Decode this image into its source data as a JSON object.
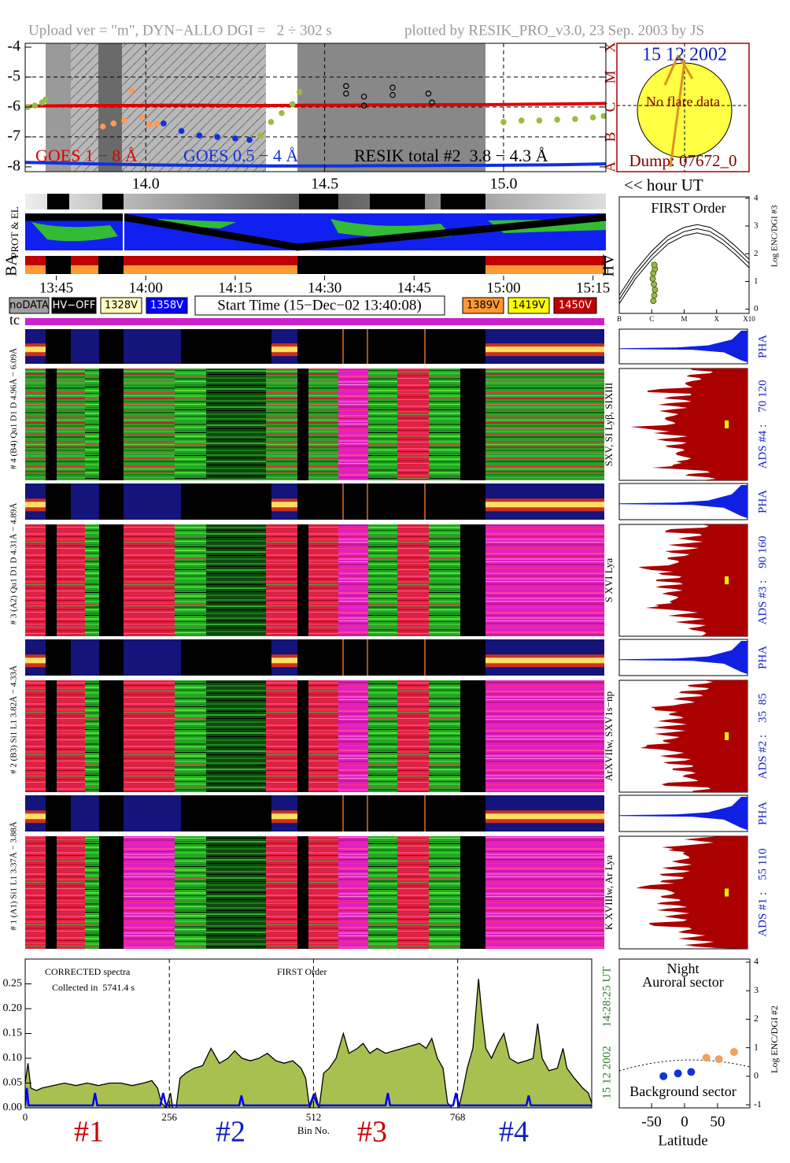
{
  "header": {
    "left": "Upload ver = \"m\", DYN−ALLO DGI =   2 ÷ 302 s",
    "right": "plotted by RESIK_PRO_v3.0, 23 Sep. 2003 by JS"
  },
  "sun": {
    "date": "15 12 2002",
    "note": "No flare data",
    "dump": "Dump: 07672_0"
  },
  "hour_label": "<< hour UT",
  "strip_labels": {
    "prot": "PROT & EL",
    "ba": "BA",
    "hv": "HV",
    "tc": "tc"
  },
  "legend_boxes": [
    {
      "label": "noDATA",
      "color": "#a0a0a0"
    },
    {
      "label": "HV−OFF",
      "color": "#000000"
    },
    {
      "label": "1328V",
      "color": "#ffffc0"
    },
    {
      "label": "1358V",
      "color": "#0000ff"
    },
    {
      "label": "1389V",
      "color": "#ff9933"
    },
    {
      "label": "1419V",
      "color": "#ffff00"
    },
    {
      "label": "1450V",
      "color": "#c00000"
    }
  ],
  "start_time": "Start Time (15−Dec−02 13:40:08)",
  "spectrograms": [
    {
      "left": "# 4 (B4) Qu1 D1 D 4.96Å − 6.09Å",
      "lines": "SXV, SI Lyβ, SIXIII",
      "ads": "ADS #4 :    70 120",
      "pha": "PHA"
    },
    {
      "left": "# 3 (A2) Qu1 D1 D 4.31Å − 4.89Å",
      "lines": "S XVI Lya",
      "ads": "ADS #3 :    90 160",
      "pha": "PHA"
    },
    {
      "left": "# 2 (B3) Si1 L1 3.82Å − 4.33Å",
      "lines": "ArXVIIw, SXV1s−np",
      "ads": "ADS #2 :    35  85",
      "pha": "PHA"
    },
    {
      "left": "# 1 (A1) Si1 L1 3.37Å − 3.88Å",
      "lines": "K XVIIIw, Ar Lya",
      "ads": "ADS #1 :    55 110",
      "pha": "PHA"
    }
  ],
  "chart_data": [
    {
      "type": "line",
      "xlim": [
        13.663,
        15.286
      ],
      "xticks": [
        {
          "value": 14,
          "label": "14.0"
        },
        14.5,
        {
          "value": 15,
          "label": "15.0"
        }
      ],
      "ylim": [
        -8.16,
        -3.87
      ],
      "yticks": [
        -4,
        -5,
        -6,
        -7,
        -8
      ],
      "y2lim": [
        -8.16,
        -3.87
      ],
      "y2ticks": [
        {
          "value": -4,
          "label": "X"
        },
        {
          "value": -5,
          "label": "M"
        },
        {
          "value": -6,
          "label": "C"
        },
        {
          "value": -7,
          "label": "B"
        },
        {
          "value": -8,
          "label": "A"
        }
      ],
      "grid": true,
      "series": [
        {
          "name": "GOES 1 − 8 Å",
          "color": "#e00000",
          "style": "line",
          "x": [
            13.663,
            13.75,
            13.85,
            13.95,
            14.05,
            14.15,
            14.25,
            14.35,
            14.45,
            14.55,
            14.65,
            14.75,
            14.85,
            14.95,
            15.05,
            15.15,
            15.286
          ],
          "values": [
            -5.97,
            -5.96,
            -5.95,
            -5.95,
            -5.94,
            -5.94,
            -5.95,
            -5.95,
            -5.94,
            -5.94,
            -5.93,
            -5.93,
            -5.92,
            -5.92,
            -5.91,
            -5.9,
            -5.88
          ]
        },
        {
          "name": "GOES 0.5 − 4 Å",
          "color": "#1030e0",
          "style": "line",
          "x": [
            13.663,
            13.75,
            13.85,
            13.95,
            14.05,
            14.15,
            14.25,
            14.35,
            14.45,
            14.55,
            14.65,
            14.75,
            14.85,
            14.95,
            15.05,
            15.15,
            15.286
          ],
          "values": [
            -7.85,
            -7.87,
            -7.9,
            -7.92,
            -7.94,
            -7.95,
            -7.96,
            -7.97,
            -7.97,
            -7.97,
            -7.96,
            -7.96,
            -7.95,
            -7.95,
            -7.94,
            -7.93,
            -7.9
          ]
        },
        {
          "name": "RESIK total #2  3.8 − 4.3 Å",
          "color": "#99bb44",
          "style": "markers",
          "x": [
            13.67,
            13.69,
            13.71,
            13.72,
            13.88,
            13.91,
            13.94,
            13.96,
            13.99,
            14.01,
            14.03,
            14.05,
            14.1,
            14.15,
            14.2,
            14.25,
            14.29,
            14.32,
            14.35,
            14.38,
            14.41,
            14.43,
            14.56,
            14.56,
            14.61,
            14.61,
            14.69,
            14.69,
            14.79,
            14.8,
            15.0,
            15.05,
            15.1,
            15.15,
            15.2,
            15.25,
            15.28
          ],
          "values": [
            -6.0,
            -5.95,
            -5.85,
            -5.75,
            -6.65,
            -6.55,
            -6.45,
            -5.45,
            -6.35,
            -6.6,
            -6.55,
            -6.55,
            -6.8,
            -6.95,
            -7.0,
            -7.05,
            -7.1,
            -6.95,
            -6.5,
            -6.2,
            -5.9,
            -5.5,
            -5.3,
            -5.55,
            -5.65,
            -5.95,
            -5.35,
            -5.6,
            -5.55,
            -5.85,
            -6.5,
            -6.45,
            -6.45,
            -6.42,
            -6.4,
            -6.35,
            -6.3
          ],
          "point_colors": [
            "#99bb44",
            "#99bb44",
            "#99bb44",
            "#99bb44",
            "#ff9955",
            "#ff9955",
            "#ff9955",
            "#ff9955",
            "#ff9955",
            "#ff9955",
            "#ff9955",
            "#1133dd",
            "#1133dd",
            "#1133dd",
            "#1133dd",
            "#1133dd",
            "#1133dd",
            "#99bb44",
            "#99bb44",
            "#99bb44",
            "#99bb44",
            "#99bb44",
            "#000000",
            "#000000",
            "#000000",
            "#000000",
            "#000000",
            "#000000",
            "#000000",
            "#000000",
            "#99bb44",
            "#99bb44",
            "#99bb44",
            "#99bb44",
            "#99bb44",
            "#99bb44",
            "#99bb44"
          ]
        }
      ]
    },
    {
      "type": "timeline",
      "xlim": [
        13.663,
        15.286
      ],
      "xticks": [
        {
          "value": 13.75,
          "label": "13:45"
        },
        {
          "value": 14,
          "label": "14:00"
        },
        {
          "value": 14.25,
          "label": "14:15"
        },
        {
          "value": 14.5,
          "label": "14:30"
        },
        {
          "value": 14.75,
          "label": "14:45"
        },
        {
          "value": 15,
          "label": "15:00"
        },
        {
          "value": 15.25,
          "label": "15:15"
        }
      ]
    },
    {
      "type": "curves",
      "title": "FIRST Order",
      "ylabel": "Log ENC/DGI #3",
      "xlim": [
        -7,
        -3
      ],
      "xticks": [
        {
          "value": -7,
          "label": "B"
        },
        {
          "value": -6,
          "label": "C"
        },
        {
          "value": -5,
          "label": "M"
        },
        {
          "value": -4,
          "label": "X"
        },
        {
          "value": -3,
          "label": "X10"
        }
      ],
      "ylim": [
        -0.15,
        4.05
      ],
      "yticks": [
        0,
        1,
        2,
        3,
        4
      ],
      "curve_x": [
        -7,
        -6.5,
        -6,
        -5.5,
        -5,
        -4.6,
        -4.2,
        -3.8,
        -3.4,
        -3
      ],
      "curves": [
        [
          0.5,
          1.4,
          2.1,
          2.65,
          2.95,
          3.05,
          2.95,
          2.65,
          2.25,
          1.8
        ],
        [
          0.35,
          1.25,
          1.95,
          2.5,
          2.8,
          2.9,
          2.8,
          2.5,
          2.1,
          1.65
        ],
        [
          0.2,
          1.1,
          1.8,
          2.35,
          2.65,
          2.75,
          2.65,
          2.35,
          1.95,
          1.5
        ]
      ],
      "points": {
        "x": [
          -5.95,
          -5.92,
          -5.9,
          -5.93,
          -5.97,
          -5.95,
          -5.9,
          -5.92
        ],
        "values": [
          0.3,
          0.5,
          0.7,
          0.9,
          1.1,
          1.3,
          1.45,
          1.6
        ],
        "color": "#99bb44"
      }
    },
    {
      "type": "scatter",
      "title": "Night",
      "upper_label": "Auroral sector",
      "lower_label": "Background sector",
      "xlabel": "Latitude",
      "ylabel": "Log ENC/DGI #2",
      "xlim": [
        -99,
        99
      ],
      "xticks": [
        -50,
        0,
        50
      ],
      "ylim": [
        -1.11,
        4.11
      ],
      "yticks": [
        -1,
        0,
        1,
        2,
        3,
        4
      ],
      "x": [
        -32,
        -10,
        10,
        33,
        52,
        75
      ],
      "values": [
        0.0,
        0.1,
        0.15,
        0.65,
        0.6,
        0.85
      ],
      "colors": [
        "#1133dd",
        "#1133dd",
        "#1133dd",
        "#f0a060",
        "#f0a060",
        "#f0a060"
      ]
    },
    {
      "type": "spectrum",
      "xlim": [
        0,
        1006
      ],
      "xticks": [
        0,
        256,
        512,
        768
      ],
      "xlabel": "Bin No.",
      "ylim": [
        0,
        0.3
      ],
      "yticks": [
        {
          "value": 0,
          "label": "0.00"
        },
        {
          "value": 0.05,
          "label": "0.05"
        },
        {
          "value": 0.1,
          "label": "0.10"
        },
        {
          "value": 0.15,
          "label": "0.15"
        },
        {
          "value": 0.2,
          "label": "0.20"
        },
        {
          "value": 0.25,
          "label": "0.25"
        }
      ],
      "grid": true,
      "annotations": [
        "CORRECTED spectra",
        "Collected in  5741.4 s",
        "FIRST Order"
      ],
      "date": "15 12 2002",
      "time": "14:28:25 UT",
      "sections": [
        {
          "label": "#1",
          "color": "#cc0000"
        },
        {
          "label": "#2",
          "color": "#1020c0"
        },
        {
          "label": "#3",
          "color": "#cc0000"
        },
        {
          "label": "#4",
          "color": "#1020c0"
        }
      ],
      "spectrum": {
        "color": "#000000",
        "fill": "#a8c050",
        "x": [
          0,
          5,
          10,
          20,
          30,
          50,
          70,
          90,
          110,
          130,
          150,
          170,
          190,
          210,
          225,
          235,
          242,
          250,
          258,
          262,
          268,
          275,
          285,
          300,
          315,
          330,
          345,
          360,
          372,
          385,
          400,
          415,
          430,
          445,
          460,
          475,
          490,
          498,
          505,
          515,
          522,
          530,
          540,
          552,
          565,
          575,
          590,
          600,
          612,
          625,
          640,
          655,
          670,
          685,
          700,
          712,
          722,
          732,
          742,
          750,
          758,
          770,
          778,
          785,
          795,
          805,
          810,
          818,
          828,
          840,
          850,
          860,
          875,
          890,
          902,
          910,
          918,
          930,
          945,
          955,
          962,
          975,
          990,
          1000,
          1006
        ],
        "values": [
          0.05,
          0.09,
          0.04,
          0.035,
          0.04,
          0.045,
          0.05,
          0.045,
          0.05,
          0.045,
          0.05,
          0.05,
          0.045,
          0.05,
          0.055,
          0.04,
          0.01,
          0.0,
          0.03,
          0.0,
          0.0,
          0.06,
          0.07,
          0.08,
          0.085,
          0.12,
          0.09,
          0.1,
          0.115,
          0.1,
          0.095,
          0.1,
          0.11,
          0.095,
          0.09,
          0.095,
          0.08,
          0.06,
          0.0,
          0.03,
          0.0,
          0.07,
          0.08,
          0.1,
          0.15,
          0.11,
          0.12,
          0.13,
          0.11,
          0.12,
          0.11,
          0.115,
          0.12,
          0.125,
          0.13,
          0.12,
          0.14,
          0.1,
          0.08,
          0.01,
          0.0,
          0.0,
          0.04,
          0.08,
          0.12,
          0.26,
          0.2,
          0.12,
          0.1,
          0.13,
          0.15,
          0.1,
          0.09,
          0.095,
          0.1,
          0.17,
          0.1,
          0.075,
          0.08,
          0.12,
          0.08,
          0.06,
          0.04,
          0.03,
          0.01
        ]
      },
      "background": {
        "color": "#0000ff",
        "x": [
          0,
          3,
          6,
          120,
          124,
          128,
          240,
          245,
          250,
          380,
          384,
          388,
          505,
          512,
          520,
          640,
          644,
          648,
          760,
          765,
          770,
          890,
          894,
          898,
          1006
        ],
        "values": [
          0.005,
          0.04,
          0.005,
          0.005,
          0.03,
          0.005,
          0.005,
          0.03,
          0.005,
          0.005,
          0.025,
          0.005,
          0.005,
          0.025,
          0.005,
          0.005,
          0.03,
          0.005,
          0.005,
          0.03,
          0.005,
          0.005,
          0.025,
          0.005,
          0.005
        ]
      }
    }
  ]
}
